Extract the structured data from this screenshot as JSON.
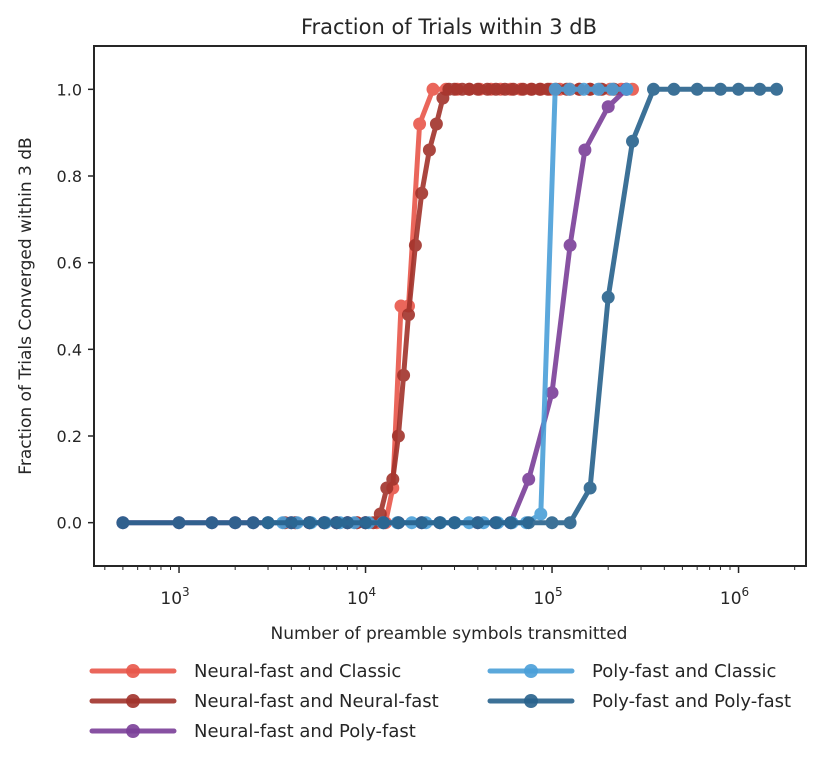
{
  "chart_data": {
    "type": "line",
    "title": "Fraction of Trials within 3 dB",
    "xlabel": "Number of preamble symbols transmitted",
    "ylabel": "Fraction of Trials Converged within 3 dB",
    "xscale": "log",
    "xlim": [
      350,
      2300000
    ],
    "ylim": [
      -0.1,
      1.1
    ],
    "yticks": [
      "0.0",
      "0.2",
      "0.4",
      "0.6",
      "0.8",
      "1.0"
    ],
    "xticks": [
      {
        "value": 1000,
        "base": "10",
        "exp": "3"
      },
      {
        "value": 10000,
        "base": "10",
        "exp": "4"
      },
      {
        "value": 100000,
        "base": "10",
        "exp": "5"
      },
      {
        "value": 1000000,
        "base": "10",
        "exp": "6"
      }
    ],
    "grid": false,
    "legend_position": "bottom",
    "series": [
      {
        "name": "Neural-fast and Classic",
        "color": "#e8564a",
        "x": [
          4200,
          5000,
          6000,
          7000,
          8000,
          9000,
          10000,
          11500,
          12800,
          14000,
          15500,
          17000,
          19500,
          23000,
          27000,
          31000,
          36000,
          41000,
          47000,
          53000,
          60000,
          68000,
          77000,
          87000,
          98000,
          110000,
          125000,
          140000,
          160000,
          180000,
          205000,
          235000,
          270000
        ],
        "y": [
          0.0,
          0.0,
          0.0,
          0.0,
          0.0,
          0.0,
          0.0,
          0.0,
          0.0,
          0.08,
          0.5,
          0.5,
          0.92,
          1.0,
          1.0,
          1.0,
          1.0,
          1.0,
          1.0,
          1.0,
          1.0,
          1.0,
          1.0,
          1.0,
          1.0,
          1.0,
          1.0,
          1.0,
          1.0,
          1.0,
          1.0,
          1.0,
          1.0
        ]
      },
      {
        "name": "Neural-fast and Neural-fast",
        "color": "#a1322b",
        "x": [
          3700,
          4200,
          5000,
          6000,
          7000,
          8000,
          9000,
          10000,
          11000,
          12000,
          13000,
          14000,
          15000,
          16000,
          17000,
          18500,
          20000,
          22000,
          24000,
          26000,
          28000,
          30000,
          33000,
          36000,
          40000,
          45000,
          50000,
          56000,
          62000,
          70000,
          78000,
          86000,
          95000,
          105000,
          120000,
          140000,
          160000,
          185000,
          215000,
          250000
        ],
        "y": [
          0.0,
          0.0,
          0.0,
          0.0,
          0.0,
          0.0,
          0.0,
          0.0,
          0.0,
          0.02,
          0.08,
          0.1,
          0.2,
          0.34,
          0.48,
          0.64,
          0.76,
          0.86,
          0.92,
          0.98,
          1.0,
          1.0,
          1.0,
          1.0,
          1.0,
          1.0,
          1.0,
          1.0,
          1.0,
          1.0,
          1.0,
          1.0,
          1.0,
          1.0,
          1.0,
          1.0,
          1.0,
          1.0,
          1.0,
          1.0
        ]
      },
      {
        "name": "Neural-fast and Poly-fast",
        "color": "#7b3f98",
        "x": [
          500,
          1000,
          1500,
          2000,
          2500,
          3000,
          4000,
          5000,
          6000,
          7000,
          8000,
          10000,
          12500,
          15000,
          20000,
          25000,
          30000,
          40000,
          50000,
          60000,
          75000,
          100000,
          125000,
          150000,
          200000,
          250000
        ],
        "y": [
          0.0,
          0.0,
          0.0,
          0.0,
          0.0,
          0.0,
          0.0,
          0.0,
          0.0,
          0.0,
          0.0,
          0.0,
          0.0,
          0.0,
          0.0,
          0.0,
          0.0,
          0.0,
          0.0,
          0.0,
          0.1,
          0.3,
          0.64,
          0.86,
          0.96,
          1.0
        ]
      },
      {
        "name": "Poly-fast and Classic",
        "color": "#4a9fd8",
        "x": [
          3000,
          3600,
          4300,
          5100,
          6100,
          7300,
          8700,
          10400,
          12400,
          14800,
          17700,
          21100,
          25200,
          30100,
          35900,
          42900,
          51200,
          61100,
          72900,
          87000,
          104000,
          124000,
          148000,
          177000,
          211000,
          252000
        ],
        "y": [
          0.0,
          0.0,
          0.0,
          0.0,
          0.0,
          0.0,
          0.0,
          0.0,
          0.0,
          0.0,
          0.0,
          0.0,
          0.0,
          0.0,
          0.0,
          0.0,
          0.0,
          0.0,
          0.0,
          0.02,
          1.0,
          1.0,
          1.0,
          1.0,
          1.0,
          1.0
        ]
      },
      {
        "name": "Poly-fast and Poly-fast",
        "color": "#28628c",
        "x": [
          500,
          1000,
          1500,
          2000,
          2500,
          3000,
          4000,
          5000,
          6000,
          7000,
          8000,
          10000,
          12500,
          15000,
          20000,
          25000,
          30000,
          40000,
          50000,
          60000,
          75000,
          100000,
          125000,
          160000,
          200000,
          270000,
          350000,
          450000,
          600000,
          800000,
          1000000,
          1300000,
          1600000
        ],
        "y": [
          0.0,
          0.0,
          0.0,
          0.0,
          0.0,
          0.0,
          0.0,
          0.0,
          0.0,
          0.0,
          0.0,
          0.0,
          0.0,
          0.0,
          0.0,
          0.0,
          0.0,
          0.0,
          0.0,
          0.0,
          0.0,
          0.0,
          0.0,
          0.08,
          0.52,
          0.88,
          1.0,
          1.0,
          1.0,
          1.0,
          1.0,
          1.0,
          1.0
        ]
      }
    ]
  }
}
